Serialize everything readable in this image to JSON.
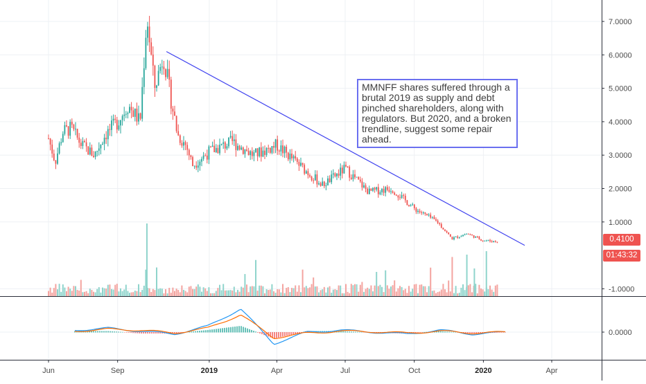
{
  "chart_data": [
    {
      "type": "candlestick",
      "panel": "price",
      "ylim": [
        -1.3,
        7.7
      ],
      "y_ticks": [
        "7.0000",
        "6.0000",
        "5.0000",
        "4.0000",
        "3.0000",
        "2.0000",
        "1.0000",
        "-1.0000"
      ],
      "y_tick_values": [
        7,
        6,
        5,
        4,
        3,
        2,
        1,
        -1
      ],
      "x_ticks": [
        {
          "label": "Jun",
          "bold": false
        },
        {
          "label": "Sep",
          "bold": false
        },
        {
          "label": "2019",
          "bold": true
        },
        {
          "label": "Apr",
          "bold": false
        },
        {
          "label": "Jul",
          "bold": false
        },
        {
          "label": "Oct",
          "bold": false
        },
        {
          "label": "2020",
          "bold": true
        },
        {
          "label": "Apr",
          "bold": false
        }
      ],
      "price_path": [
        {
          "date": "2018-06-01",
          "price": 3.5
        },
        {
          "date": "2018-06-10",
          "price": 2.8
        },
        {
          "date": "2018-06-20",
          "price": 3.7
        },
        {
          "date": "2018-07-01",
          "price": 3.8
        },
        {
          "date": "2018-07-15",
          "price": 3.3
        },
        {
          "date": "2018-08-01",
          "price": 3.0
        },
        {
          "date": "2018-08-15",
          "price": 3.6
        },
        {
          "date": "2018-09-01",
          "price": 4.0
        },
        {
          "date": "2018-09-15",
          "price": 4.5
        },
        {
          "date": "2018-10-01",
          "price": 4.0
        },
        {
          "date": "2018-10-10",
          "price": 7.2
        },
        {
          "date": "2018-10-20",
          "price": 5.0
        },
        {
          "date": "2018-11-01",
          "price": 6.0
        },
        {
          "date": "2018-11-10",
          "price": 4.8
        },
        {
          "date": "2018-11-20",
          "price": 3.6
        },
        {
          "date": "2018-12-01",
          "price": 3.3
        },
        {
          "date": "2018-12-10",
          "price": 2.7
        },
        {
          "date": "2019-01-01",
          "price": 3.1
        },
        {
          "date": "2019-02-01",
          "price": 3.4
        },
        {
          "date": "2019-03-01",
          "price": 3.0
        },
        {
          "date": "2019-04-01",
          "price": 3.3
        },
        {
          "date": "2019-05-01",
          "price": 2.7
        },
        {
          "date": "2019-06-01",
          "price": 2.1
        },
        {
          "date": "2019-07-01",
          "price": 2.6
        },
        {
          "date": "2019-08-01",
          "price": 1.9
        },
        {
          "date": "2019-09-01",
          "price": 2.0
        },
        {
          "date": "2019-10-01",
          "price": 1.4
        },
        {
          "date": "2019-11-01",
          "price": 1.0
        },
        {
          "date": "2019-11-20",
          "price": 0.5
        },
        {
          "date": "2019-12-10",
          "price": 0.65
        },
        {
          "date": "2020-01-01",
          "price": 0.45
        },
        {
          "date": "2020-01-20",
          "price": 0.41
        }
      ],
      "trendline": {
        "start": {
          "date": "2018-11-05",
          "price": 6.1
        },
        "end": {
          "date": "2020-02-25",
          "price": 0.3
        },
        "color": "#3f42ef"
      },
      "last_price": "0.4100",
      "countdown": "01:43:32",
      "annotation": "MMNFF shares suffered through a brutal 2019 as supply and debt pinched shareholders, along with regulators. But 2020, and a broken trendline, suggest some repair ahead.",
      "up_color": "#26a69a",
      "down_color": "#ef5350",
      "volume_up_color": "#8fd4cc",
      "volume_down_color": "#f4a4a0"
    },
    {
      "type": "line",
      "panel": "macd",
      "y_ticks": [
        "0.0000"
      ],
      "y_tick_values": [
        0
      ],
      "series": [
        {
          "color": "#2196f3",
          "values": [
            0.1,
            0.2,
            0.05,
            -0.1,
            0.3,
            1.2,
            -0.6,
            0.0,
            0.1,
            0.0,
            -0.1,
            0.1,
            -0.1,
            0.0
          ]
        },
        {
          "color": "#ff6d00",
          "values": [
            0.05,
            0.15,
            0.1,
            -0.05,
            0.2,
            0.9,
            -0.3,
            -0.05,
            0.05,
            0.02,
            -0.05,
            0.05,
            -0.05,
            0.0
          ]
        }
      ]
    }
  ]
}
